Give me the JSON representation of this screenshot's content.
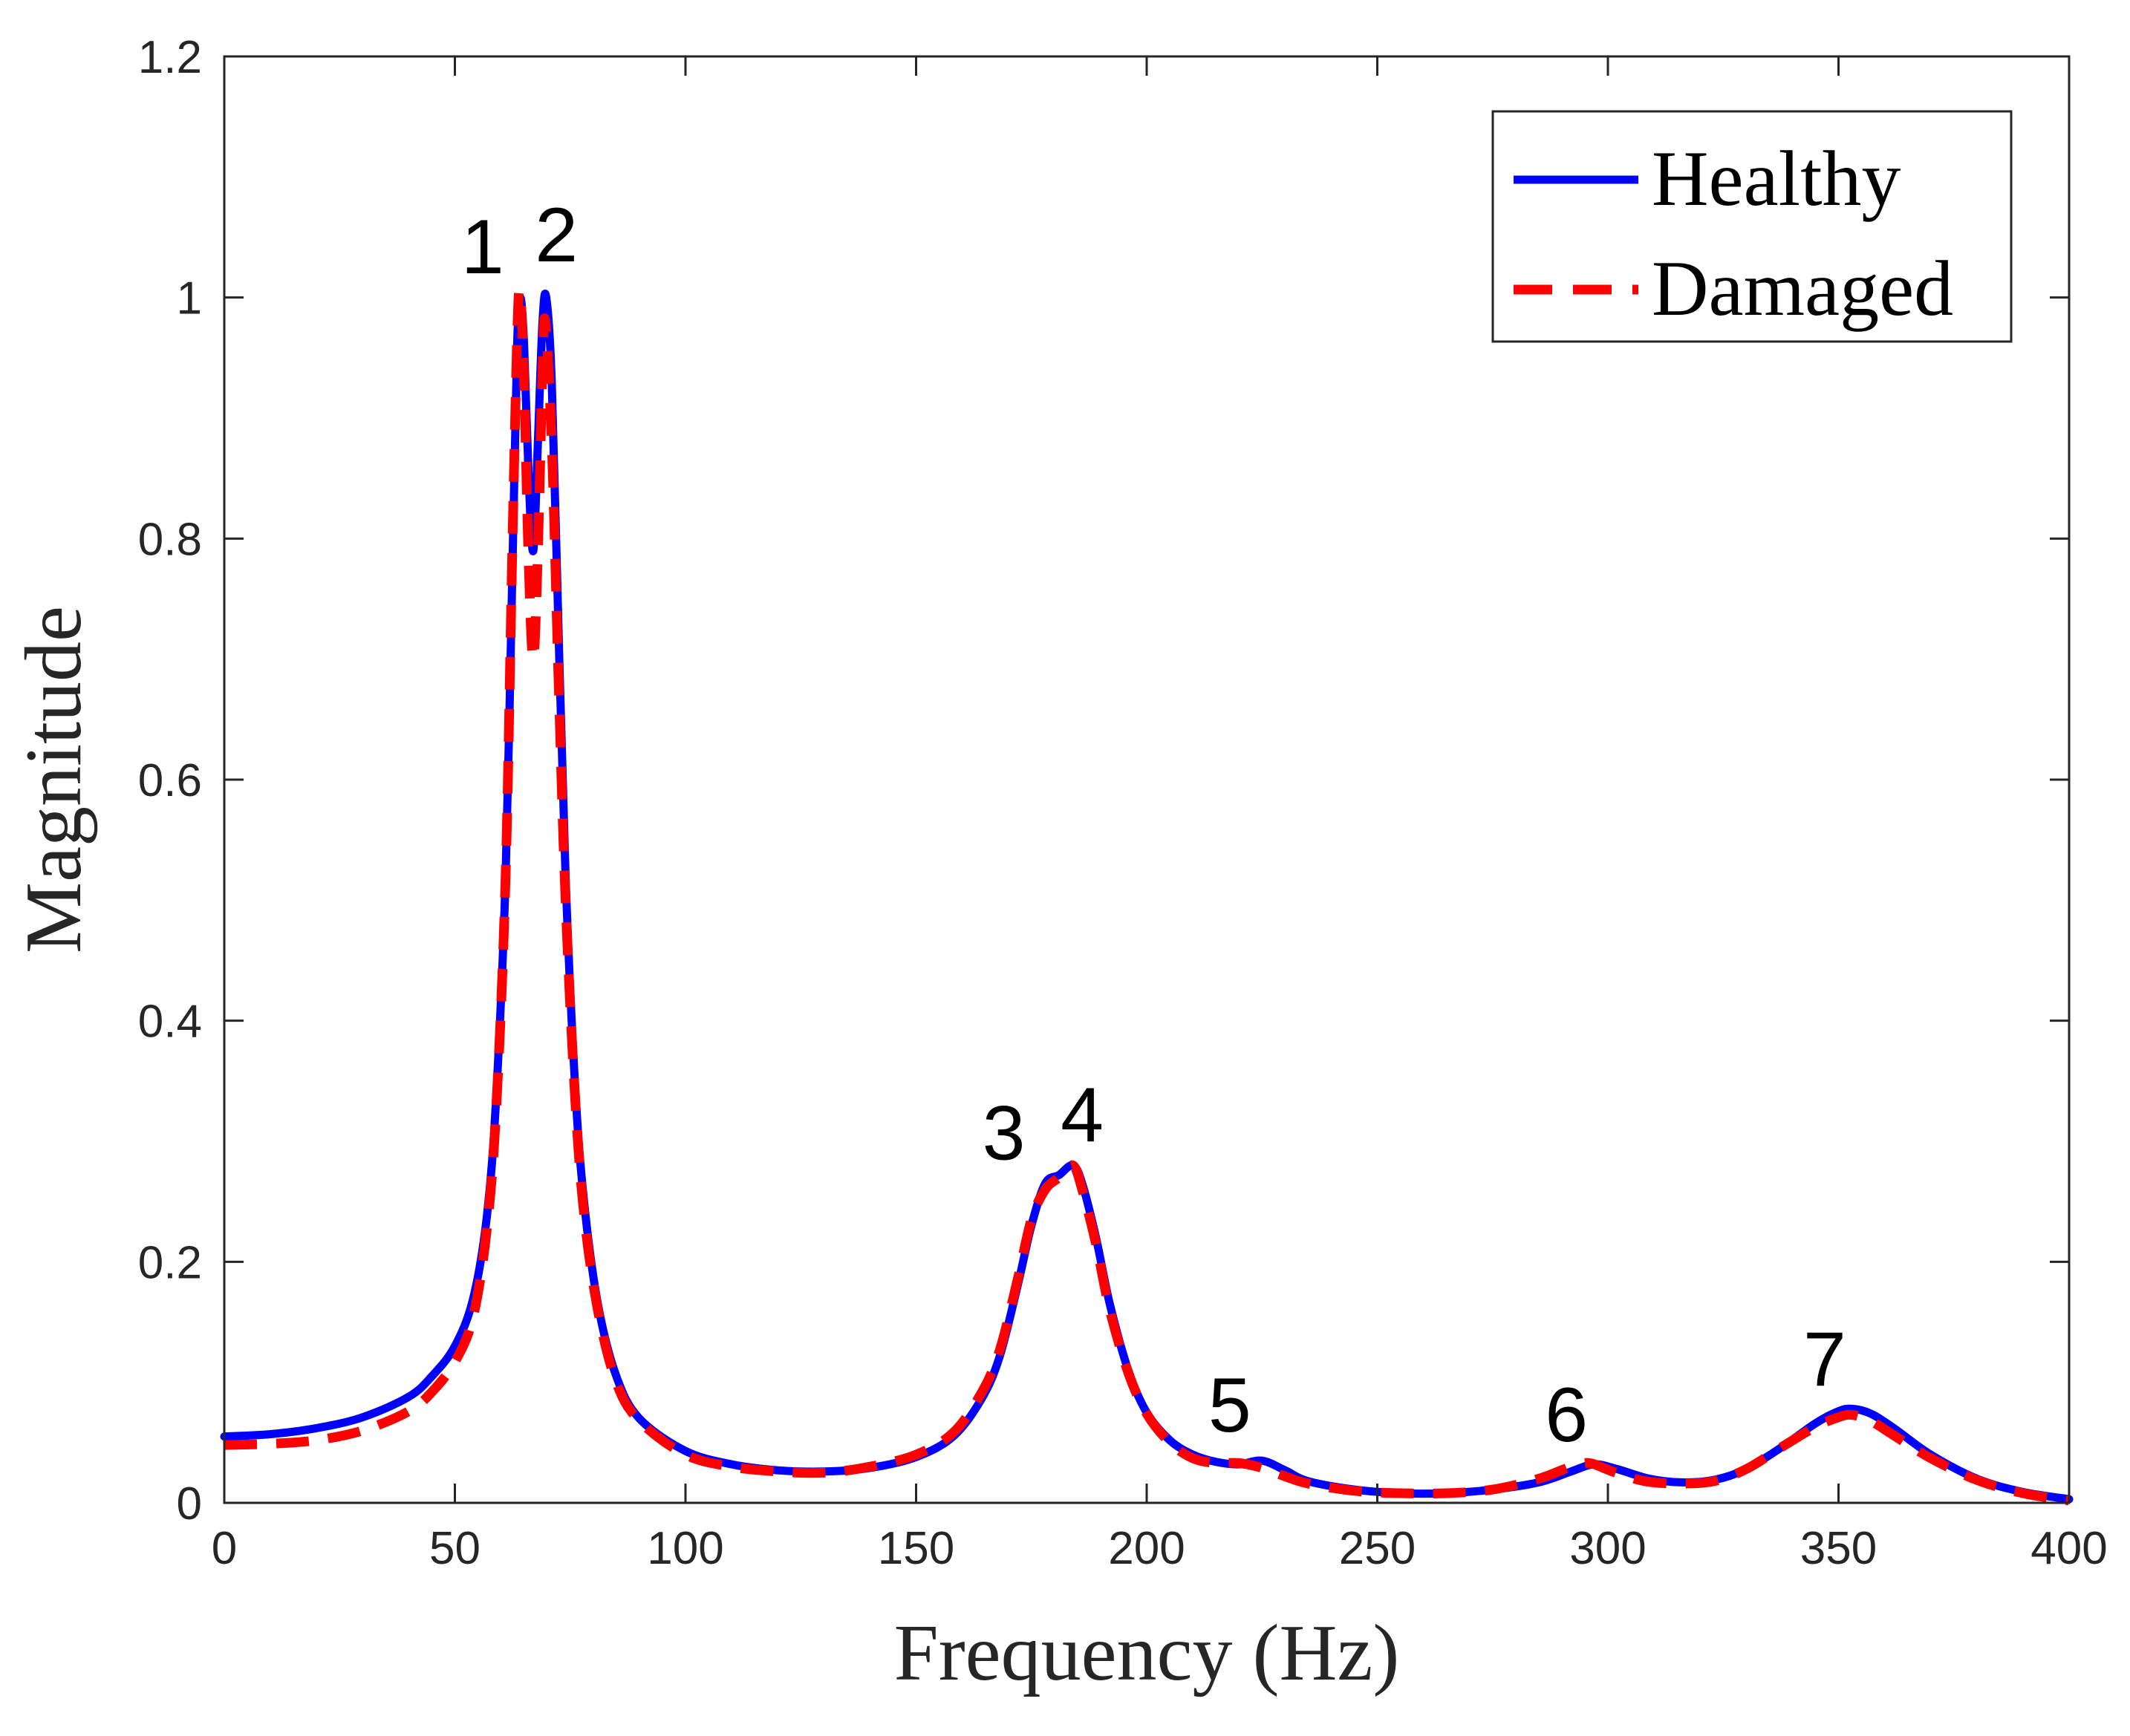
{
  "chart_data": {
    "type": "line",
    "title": "",
    "xlabel": "Frequency (Hz)",
    "ylabel": "Magnitude",
    "xlim": [
      0,
      400
    ],
    "ylim": [
      0,
      1.2
    ],
    "xticks": [
      0,
      50,
      100,
      150,
      200,
      250,
      300,
      350,
      400
    ],
    "xtick_labels": [
      "0",
      "50",
      "100",
      "150",
      "200",
      "250",
      "300",
      "350",
      "400"
    ],
    "yticks": [
      0,
      0.2,
      0.4,
      0.6,
      0.8,
      1.0,
      1.2
    ],
    "ytick_labels": [
      "0",
      "0.2",
      "0.4",
      "0.6",
      "0.8",
      "1",
      "1.2"
    ],
    "grid": false,
    "legend_position": "top-right",
    "series": [
      {
        "name": "Healthy",
        "color": "#0000ff",
        "style": "solid",
        "points": [
          [
            0,
            0.055
          ],
          [
            10,
            0.057
          ],
          [
            20,
            0.062
          ],
          [
            30,
            0.071
          ],
          [
            40,
            0.088
          ],
          [
            45,
            0.105
          ],
          [
            50,
            0.13
          ],
          [
            54,
            0.17
          ],
          [
            57,
            0.24
          ],
          [
            59,
            0.34
          ],
          [
            61,
            0.52
          ],
          [
            62.5,
            0.78
          ],
          [
            63.5,
            0.96
          ],
          [
            64.2,
            1.0
          ],
          [
            65,
            0.96
          ],
          [
            66,
            0.85
          ],
          [
            67,
            0.79
          ],
          [
            68,
            0.88
          ],
          [
            69,
            0.98
          ],
          [
            69.8,
            1.0
          ],
          [
            71,
            0.93
          ],
          [
            72.5,
            0.72
          ],
          [
            74,
            0.52
          ],
          [
            76,
            0.35
          ],
          [
            78,
            0.25
          ],
          [
            81,
            0.165
          ],
          [
            85,
            0.105
          ],
          [
            90,
            0.07
          ],
          [
            100,
            0.043
          ],
          [
            110,
            0.032
          ],
          [
            120,
            0.027
          ],
          [
            130,
            0.026
          ],
          [
            140,
            0.029
          ],
          [
            150,
            0.038
          ],
          [
            158,
            0.055
          ],
          [
            164,
            0.085
          ],
          [
            168,
            0.12
          ],
          [
            172,
            0.18
          ],
          [
            175,
            0.23
          ],
          [
            178,
            0.265
          ],
          [
            181,
            0.272
          ],
          [
            184,
            0.28
          ],
          [
            186,
            0.265
          ],
          [
            189,
            0.22
          ],
          [
            192,
            0.165
          ],
          [
            196,
            0.11
          ],
          [
            200,
            0.075
          ],
          [
            205,
            0.052
          ],
          [
            210,
            0.04
          ],
          [
            215,
            0.034
          ],
          [
            220,
            0.032
          ],
          [
            225,
            0.035
          ],
          [
            230,
            0.027
          ],
          [
            235,
            0.018
          ],
          [
            245,
            0.011
          ],
          [
            255,
            0.008
          ],
          [
            265,
            0.008
          ],
          [
            275,
            0.011
          ],
          [
            285,
            0.017
          ],
          [
            292,
            0.026
          ],
          [
            297,
            0.032
          ],
          [
            302,
            0.028
          ],
          [
            309,
            0.02
          ],
          [
            316,
            0.017
          ],
          [
            323,
            0.019
          ],
          [
            330,
            0.028
          ],
          [
            338,
            0.047
          ],
          [
            345,
            0.066
          ],
          [
            350,
            0.076
          ],
          [
            353,
            0.078
          ],
          [
            357,
            0.074
          ],
          [
            362,
            0.062
          ],
          [
            370,
            0.04
          ],
          [
            380,
            0.02
          ],
          [
            390,
            0.009
          ],
          [
            400,
            0.003
          ]
        ]
      },
      {
        "name": "Damaged",
        "color": "#ff0000",
        "style": "dashed",
        "points": [
          [
            0,
            0.048
          ],
          [
            10,
            0.049
          ],
          [
            20,
            0.052
          ],
          [
            30,
            0.06
          ],
          [
            40,
            0.076
          ],
          [
            45,
            0.092
          ],
          [
            50,
            0.117
          ],
          [
            54,
            0.155
          ],
          [
            57,
            0.23
          ],
          [
            59,
            0.33
          ],
          [
            61,
            0.52
          ],
          [
            62.5,
            0.8
          ],
          [
            63.6,
            0.98
          ],
          [
            64.2,
            1.0
          ],
          [
            65,
            0.93
          ],
          [
            66,
            0.78
          ],
          [
            67,
            0.7
          ],
          [
            68,
            0.79
          ],
          [
            69,
            0.94
          ],
          [
            69.6,
            0.98
          ],
          [
            71,
            0.88
          ],
          [
            72.5,
            0.68
          ],
          [
            74,
            0.5
          ],
          [
            76,
            0.34
          ],
          [
            78,
            0.24
          ],
          [
            81,
            0.16
          ],
          [
            85,
            0.1
          ],
          [
            90,
            0.068
          ],
          [
            100,
            0.04
          ],
          [
            110,
            0.03
          ],
          [
            120,
            0.026
          ],
          [
            130,
            0.025
          ],
          [
            140,
            0.03
          ],
          [
            150,
            0.04
          ],
          [
            158,
            0.058
          ],
          [
            164,
            0.09
          ],
          [
            168,
            0.125
          ],
          [
            172,
            0.185
          ],
          [
            175,
            0.235
          ],
          [
            178,
            0.26
          ],
          [
            181,
            0.27
          ],
          [
            184,
            0.28
          ],
          [
            186,
            0.26
          ],
          [
            189,
            0.215
          ],
          [
            192,
            0.16
          ],
          [
            196,
            0.108
          ],
          [
            200,
            0.074
          ],
          [
            205,
            0.05
          ],
          [
            210,
            0.037
          ],
          [
            215,
            0.033
          ],
          [
            220,
            0.033
          ],
          [
            225,
            0.029
          ],
          [
            230,
            0.022
          ],
          [
            235,
            0.016
          ],
          [
            245,
            0.01
          ],
          [
            255,
            0.008
          ],
          [
            265,
            0.008
          ],
          [
            275,
            0.011
          ],
          [
            285,
            0.02
          ],
          [
            292,
            0.03
          ],
          [
            296,
            0.033
          ],
          [
            301,
            0.026
          ],
          [
            308,
            0.018
          ],
          [
            316,
            0.016
          ],
          [
            323,
            0.018
          ],
          [
            330,
            0.028
          ],
          [
            338,
            0.047
          ],
          [
            345,
            0.063
          ],
          [
            350,
            0.071
          ],
          [
            353,
            0.073
          ],
          [
            357,
            0.068
          ],
          [
            362,
            0.056
          ],
          [
            370,
            0.037
          ],
          [
            380,
            0.019
          ],
          [
            390,
            0.008
          ],
          [
            400,
            0.002
          ]
        ]
      }
    ],
    "annotations": [
      {
        "text": "1",
        "x": 56,
        "y": 1.02
      },
      {
        "text": "2",
        "x": 72,
        "y": 1.03
      },
      {
        "text": "3",
        "x": 169,
        "y": 0.285
      },
      {
        "text": "4",
        "x": 186,
        "y": 0.3
      },
      {
        "text": "5",
        "x": 218,
        "y": 0.059
      },
      {
        "text": "6",
        "x": 291,
        "y": 0.051
      },
      {
        "text": "7",
        "x": 347,
        "y": 0.097
      }
    ]
  }
}
